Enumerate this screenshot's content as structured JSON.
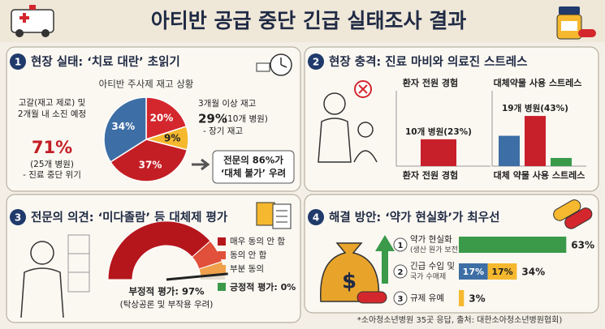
{
  "title": "아티반 공급 중단 긴급 실태조사 결과",
  "sections": [
    {
      "number": "1",
      "heading": "현장 실태: ‘치료 대란’ 초읽기",
      "chart": {
        "type": "pie",
        "title": "아티반 주사제 재고 상황",
        "values": [
          20,
          9,
          37,
          34
        ],
        "value_labels": [
          "20%",
          "9%",
          "37%",
          "34%"
        ],
        "colors": [
          "#d3272d",
          "#f5b82e",
          "#c41e25",
          "#3d6ea5"
        ]
      },
      "left_note": {
        "lines": [
          "고갈(재고 제로) 및",
          "2개월 내 소진 예정"
        ],
        "value": "71%",
        "detail": [
          "(25개 병원)",
          "- 진료 중단 위기"
        ]
      },
      "right_note": {
        "text": "3개월 이상 재고",
        "value": "29%",
        "count": "(10개 병원)",
        "detail": "- 장기 재고"
      },
      "callout": [
        "전문의 86%가",
        "‘대체 불가’ 우려"
      ]
    },
    {
      "number": "2",
      "heading": "현장 충격: 진료 마비와 의료진 스트레스",
      "charts": [
        {
          "type": "bar",
          "title": "환자 전원 경험",
          "x_label": "환자 전원 경험",
          "values": [
            23
          ],
          "colors": [
            "#c8202a"
          ],
          "annotation": "10개 병원(23%)"
        },
        {
          "type": "bar",
          "title": "대체약물 사용 스트레스",
          "x_label": "대체 약물 사용 스트레스",
          "values": [
            26,
            43,
            7
          ],
          "colors": [
            "#3d6ea5",
            "#c8202a",
            "#3a9a4a"
          ],
          "annotation": "19개 병원(43%)"
        }
      ]
    },
    {
      "number": "3",
      "heading": "전문의 의견: ‘미다졸람’ 등 대체제 평가",
      "gauge": {
        "type": "gauge",
        "segments": [
          {
            "name": "매우 동의 안 함",
            "color": "#b5161c",
            "value": 77
          },
          {
            "name": "동의 안 함",
            "color": "#e0503a",
            "value": 13
          },
          {
            "name": "부분 동의",
            "color": "#f0a04b",
            "value": 7
          }
        ],
        "negative": 97,
        "negative_label": "부정적 평가: 97%",
        "negative_note": "(탁상공론 및 부작용 우려)",
        "positive": 0,
        "positive_label": "긍정적 평가: 0%",
        "positive_color": "#3a9a4a"
      }
    },
    {
      "number": "4",
      "heading": "해결 방안: ‘약가 현실화’가 최우선",
      "rows": [
        {
          "rank": "1",
          "labels": [
            "약가 현실화",
            "(생산 원가 보전)"
          ],
          "segments": [
            {
              "value": 63,
              "color": "#3a9a4a"
            }
          ],
          "total": 63,
          "total_label": "63%"
        },
        {
          "rank": "2",
          "labels": [
            "긴급 수입 및",
            "국가 수매제"
          ],
          "segments": [
            {
              "value": 17,
              "label": "17%",
              "color": "#3d6ea5"
            },
            {
              "value": 17,
              "label": "17%",
              "color": "#f5b82e"
            }
          ],
          "total": 34,
          "total_label": "34%"
        },
        {
          "rank": "3",
          "labels": [
            "규제 유예"
          ],
          "segments": [
            {
              "value": 3,
              "color": "#f5b82e"
            }
          ],
          "total": 3,
          "total_label": "3%"
        }
      ]
    }
  ],
  "footnote": "*소아청소년병원 35곳 응답, 출처: 대한소아청소년병원협회)"
}
